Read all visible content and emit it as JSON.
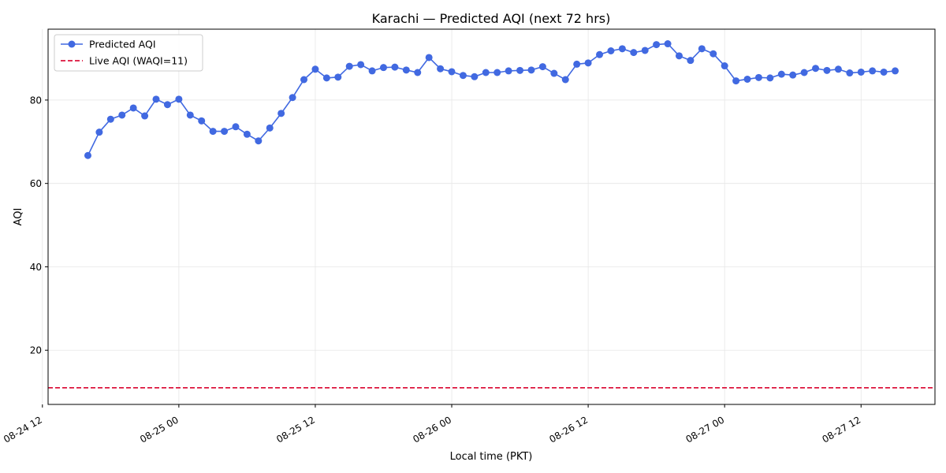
{
  "chart_data": {
    "type": "line",
    "title": "Karachi — Predicted AQI (next 72 hrs)",
    "xlabel": "Local time (PKT)",
    "ylabel": "AQI",
    "x_start": "2024-08-24 16:00",
    "x_step_hours": 1,
    "xlim_hours": [
      -3.5,
      74.5
    ],
    "ylim": [
      7,
      97
    ],
    "yticks": [
      20,
      40,
      60,
      80
    ],
    "xticks": [
      {
        "hour": -4,
        "label": "08-24 12"
      },
      {
        "hour": 8,
        "label": "08-25 00"
      },
      {
        "hour": 20,
        "label": "08-25 12"
      },
      {
        "hour": 32,
        "label": "08-26 00"
      },
      {
        "hour": 44,
        "label": "08-26 12"
      },
      {
        "hour": 56,
        "label": "08-27 00"
      },
      {
        "hour": 68,
        "label": "08-27 12"
      }
    ],
    "grid": true,
    "legend_position": "upper-left",
    "series": [
      {
        "name": "Predicted AQI",
        "color": "#4169e1",
        "marker": "circle",
        "values": [
          66.7,
          72.3,
          75.4,
          76.4,
          78.1,
          76.2,
          80.2,
          78.9,
          80.2,
          76.4,
          75.0,
          72.5,
          72.5,
          73.6,
          71.8,
          70.2,
          73.3,
          76.8,
          80.6,
          84.9,
          87.4,
          85.3,
          85.5,
          88.1,
          88.5,
          87.0,
          87.8,
          87.9,
          87.2,
          86.6,
          90.2,
          87.5,
          86.8,
          85.9,
          85.6,
          86.6,
          86.6,
          87.0,
          87.1,
          87.2,
          88.0,
          86.4,
          84.9,
          88.6,
          88.9,
          90.9,
          91.8,
          92.3,
          91.4,
          91.9,
          93.3,
          93.5,
          90.6,
          89.5,
          92.3,
          91.1,
          88.2,
          84.6,
          85.0,
          85.4,
          85.3,
          86.2,
          86.0,
          86.6,
          87.6,
          87.1,
          87.4,
          86.5,
          86.7,
          87.0,
          86.7,
          87.0
        ]
      }
    ],
    "reference_lines": [
      {
        "name": "Live AQI (WAQI=11)",
        "value": 11,
        "color": "#dc143c",
        "style": "dashed"
      }
    ]
  }
}
